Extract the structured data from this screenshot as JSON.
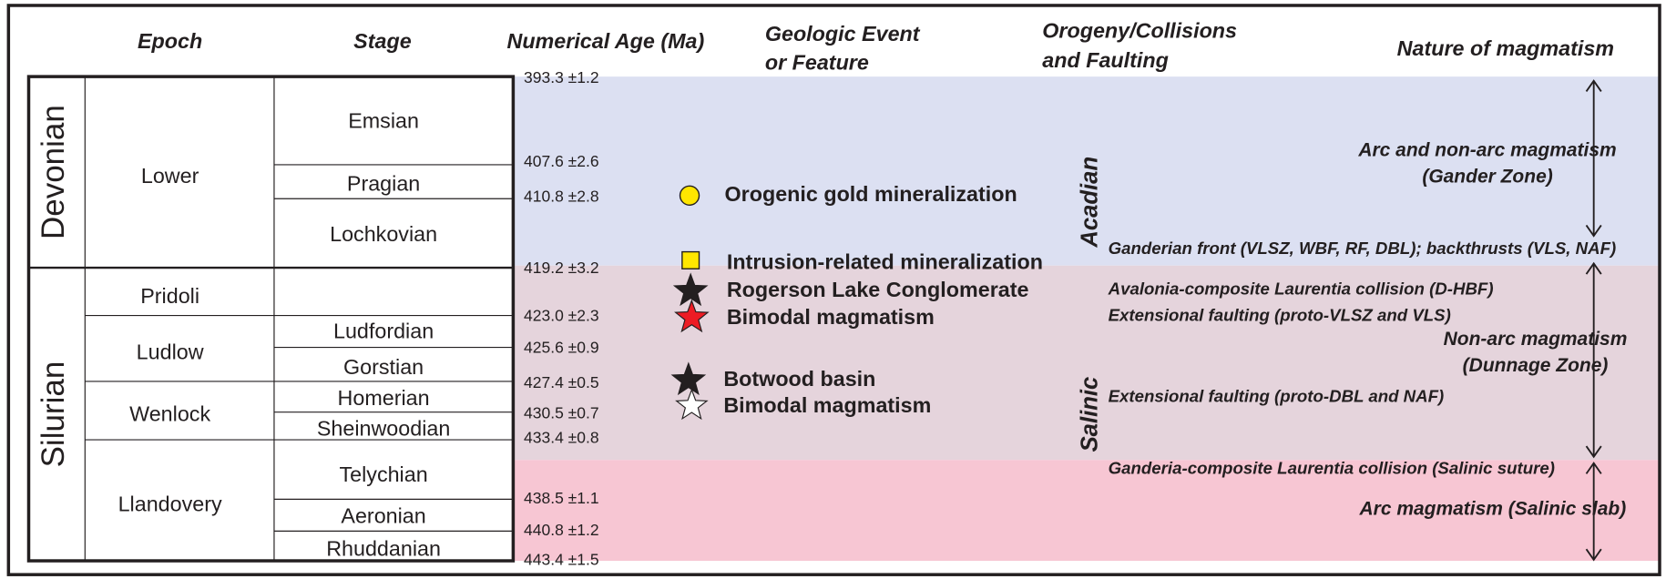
{
  "headers": {
    "epoch": "Epoch",
    "stage": "Stage",
    "age": "Numerical Age (Ma)",
    "event": [
      "Geologic Event",
      "or Feature"
    ],
    "orogeny": [
      "Orogeny/Collisions",
      "and Faulting"
    ],
    "magmatism": "Nature of magmatism"
  },
  "periods": [
    "Devonian",
    "Silurian"
  ],
  "epochs": [
    "Lower",
    "Pridoli",
    "Ludlow",
    "Wenlock",
    "Llandovery"
  ],
  "stages": [
    "Emsian",
    "Pragian",
    "Lochkovian",
    "Ludfordian",
    "Gorstian",
    "Homerian",
    "Sheinwoodian",
    "Telychian",
    "Aeronian",
    "Rhuddanian"
  ],
  "ages": [
    "393.3 ±1.2",
    "407.6 ±2.6",
    "410.8 ±2.8",
    "419.2 ±3.2",
    "423.0 ±2.3",
    "425.6 ±0.9",
    "427.4 ±0.5",
    "430.5 ±0.7",
    "433.4 ±0.8",
    "438.5 ±1.1",
    "440.8 ±1.2",
    "443.4 ±1.5"
  ],
  "events": [
    "Orogenic gold mineralization",
    "Intrusion-related mineralization",
    "Rogerson Lake Conglomerate",
    "Bimodal magmatism",
    "Botwood basin",
    "Bimodal magmatism"
  ],
  "orogenies": [
    "Acadian",
    "Salinic"
  ],
  "faulting": [
    "Ganderian front (VLSZ, WBF, RF, DBL); backthrusts (VLS, NAF)",
    "Avalonia-composite Laurentia collision (D-HBF)",
    "Extensional faulting (proto-VLSZ and VLS)",
    "Extensional faulting (proto-DBL and NAF)",
    "Ganderia-composite Laurentia collision (Salinic suture)"
  ],
  "magmatism": [
    [
      "Arc and non-arc magmatism",
      "(Gander Zone)"
    ],
    [
      "Non-arc magmatism",
      "(Dunnage Zone)"
    ],
    [
      "Arc magmatism (Salinic slab)"
    ]
  ]
}
